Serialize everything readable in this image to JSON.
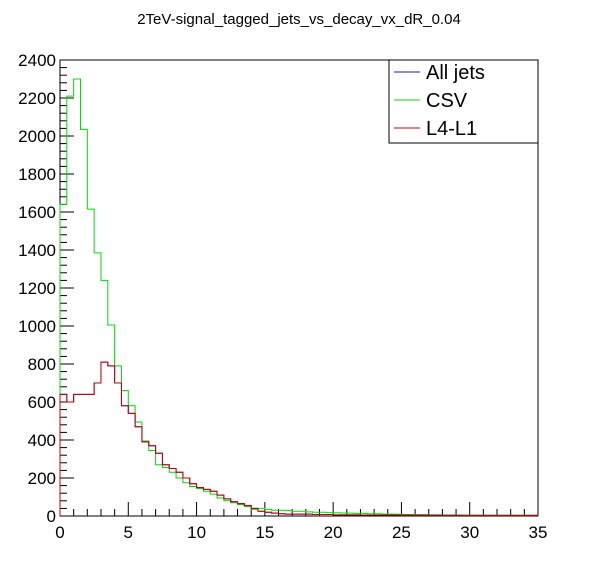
{
  "chart_data": {
    "type": "histogram",
    "title": "2TeV-signal_tagged_jets_vs_decay_vx_dR_0.04",
    "xlabel": "",
    "ylabel": "",
    "xlim": [
      0,
      35
    ],
    "ylim": [
      0,
      2400
    ],
    "x_ticks": [
      0,
      5,
      10,
      15,
      20,
      25,
      30,
      35
    ],
    "y_ticks": [
      0,
      200,
      400,
      600,
      800,
      1000,
      1200,
      1400,
      1600,
      1800,
      2000,
      2200,
      2400
    ],
    "bin_width": 0.5,
    "legend_position": "top-right",
    "series": [
      {
        "name": "All jets",
        "color": "#1a1aa6",
        "values": [
          640,
          600,
          640,
          640,
          640,
          700,
          810,
          790,
          700,
          580,
          540,
          470,
          390,
          370,
          330,
          270,
          250,
          230,
          200,
          170,
          150,
          140,
          130,
          110,
          90,
          75,
          65,
          55,
          40,
          25,
          20,
          15,
          12,
          10,
          10,
          10,
          10,
          8,
          8,
          8,
          6,
          6,
          6,
          6,
          5,
          5,
          5,
          5,
          5,
          5,
          4,
          4,
          4,
          4,
          4,
          4,
          3,
          3,
          3,
          3,
          3,
          3,
          3,
          3,
          3,
          3,
          3,
          3,
          3,
          3
        ]
      },
      {
        "name": "CSV",
        "color": "#00dd00",
        "values": [
          1640,
          2210,
          2300,
          2035,
          1615,
          1385,
          1240,
          1005,
          790,
          660,
          580,
          495,
          395,
          345,
          270,
          255,
          230,
          200,
          175,
          155,
          145,
          130,
          115,
          95,
          80,
          70,
          60,
          50,
          35,
          40,
          35,
          30,
          30,
          28,
          25,
          25,
          22,
          20,
          20,
          18,
          17,
          16,
          15,
          14,
          14,
          12,
          12,
          10,
          10,
          9,
          8,
          8,
          7,
          7,
          6,
          6,
          5,
          5,
          5,
          4,
          4,
          4,
          4,
          3,
          3,
          3,
          3,
          3,
          3,
          3
        ]
      },
      {
        "name": "L4-L1",
        "color": "#c80000",
        "values": [
          640,
          600,
          640,
          640,
          640,
          700,
          810,
          790,
          700,
          580,
          540,
          470,
          390,
          370,
          330,
          270,
          250,
          230,
          200,
          170,
          150,
          140,
          130,
          110,
          90,
          75,
          65,
          55,
          40,
          25,
          20,
          15,
          12,
          10,
          10,
          10,
          10,
          8,
          8,
          8,
          6,
          6,
          6,
          6,
          5,
          5,
          5,
          5,
          5,
          5,
          4,
          4,
          4,
          4,
          4,
          4,
          3,
          3,
          3,
          3,
          3,
          3,
          3,
          3,
          3,
          3,
          3,
          3,
          3,
          3
        ]
      }
    ]
  }
}
